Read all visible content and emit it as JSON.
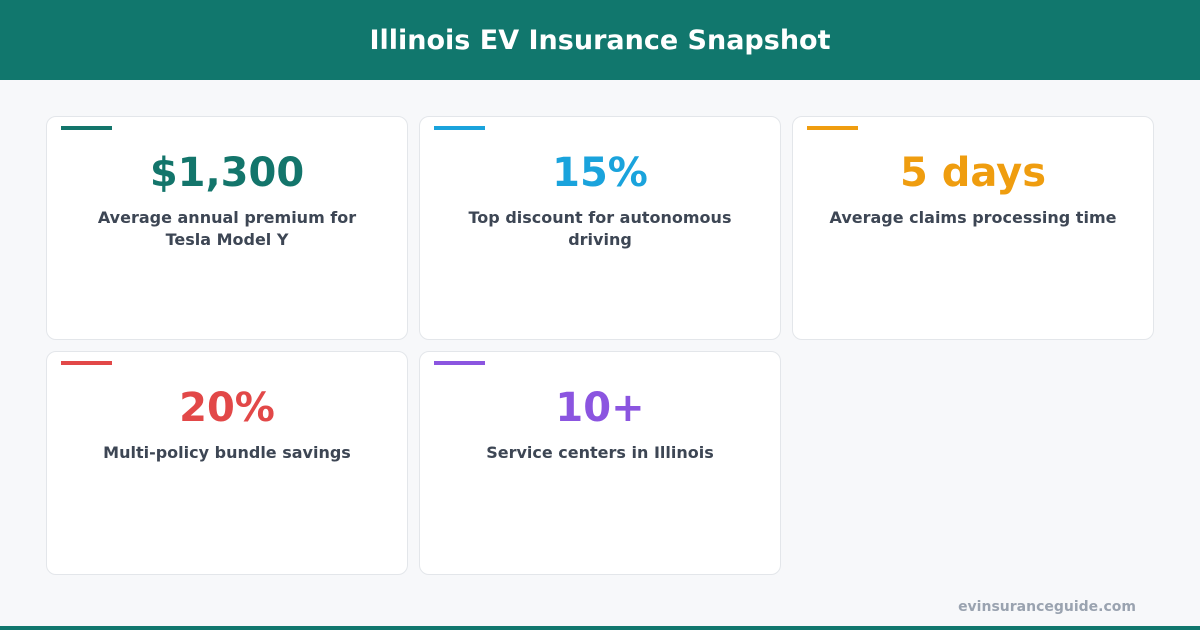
{
  "header": {
    "title": "Illinois EV Insurance Snapshot"
  },
  "cards": [
    {
      "value": "$1,300",
      "label": "Average annual premium for Tesla Model Y",
      "color": "#13756b"
    },
    {
      "value": "15%",
      "label": "Top discount for autonomous driving",
      "color": "#1aa3dc"
    },
    {
      "value": "5 days",
      "label": "Average claims processing time",
      "color": "#ef9d0f"
    },
    {
      "value": "20%",
      "label": "Multi-policy bundle savings",
      "color": "#e24848"
    },
    {
      "value": "10+",
      "label": "Service centers in Illinois",
      "color": "#8b55e0"
    }
  ],
  "footer": {
    "source": "evinsuranceguide.com"
  }
}
